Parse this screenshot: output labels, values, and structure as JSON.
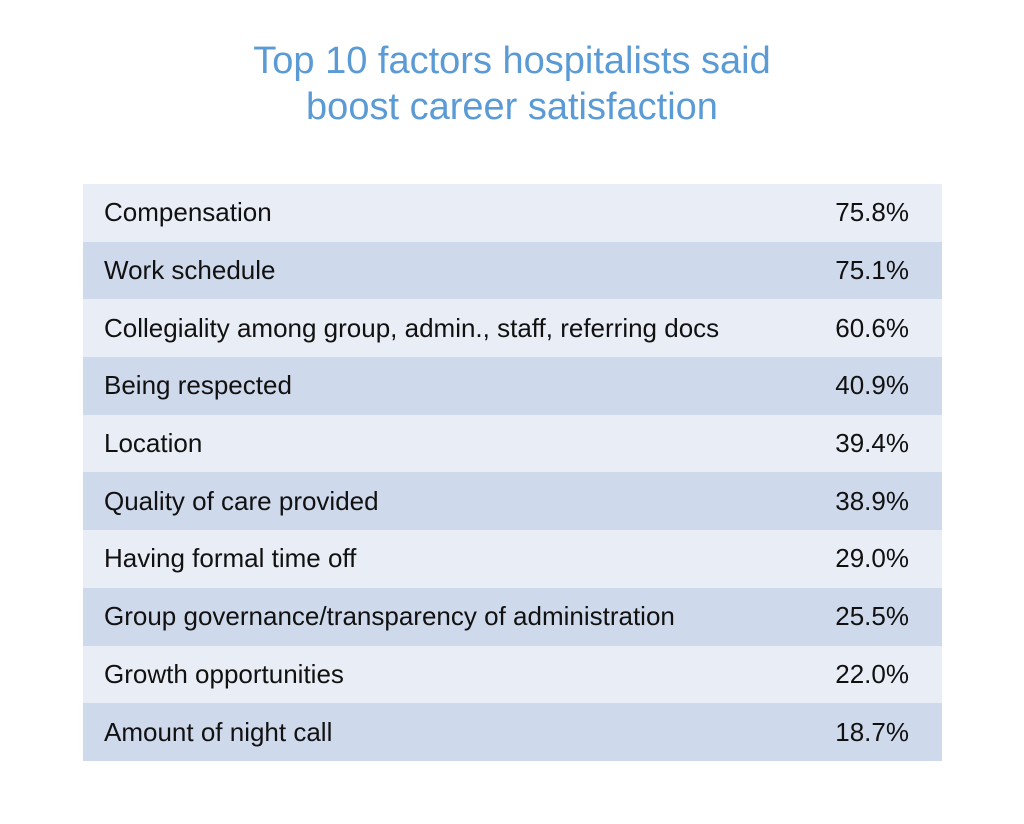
{
  "title_lines": [
    "Top 10 factors hospitalists said",
    "boost career satisfaction"
  ],
  "colors": {
    "title": "#5b9bd5",
    "row_light": "#e9edf6",
    "row_dark": "#cfd9ec",
    "text": "#111111"
  },
  "chart_data": {
    "type": "table",
    "title": "Top 10 factors hospitalists said boost career satisfaction",
    "rows": [
      {
        "label": "Compensation",
        "value": "75.8%"
      },
      {
        "label": "Work schedule",
        "value": "75.1%"
      },
      {
        "label": "Collegiality among group, admin., staff, referring docs",
        "value": "60.6%"
      },
      {
        "label": "Being respected",
        "value": "40.9%"
      },
      {
        "label": "Location",
        "value": "39.4%"
      },
      {
        "label": "Quality of care provided",
        "value": "38.9%"
      },
      {
        "label": "Having formal time off",
        "value": "29.0%"
      },
      {
        "label": "Group governance/transparency of administration",
        "value": "25.5%"
      },
      {
        "label": "Growth opportunities",
        "value": "22.0%"
      },
      {
        "label": "Amount of night call",
        "value": "18.7%"
      }
    ]
  }
}
